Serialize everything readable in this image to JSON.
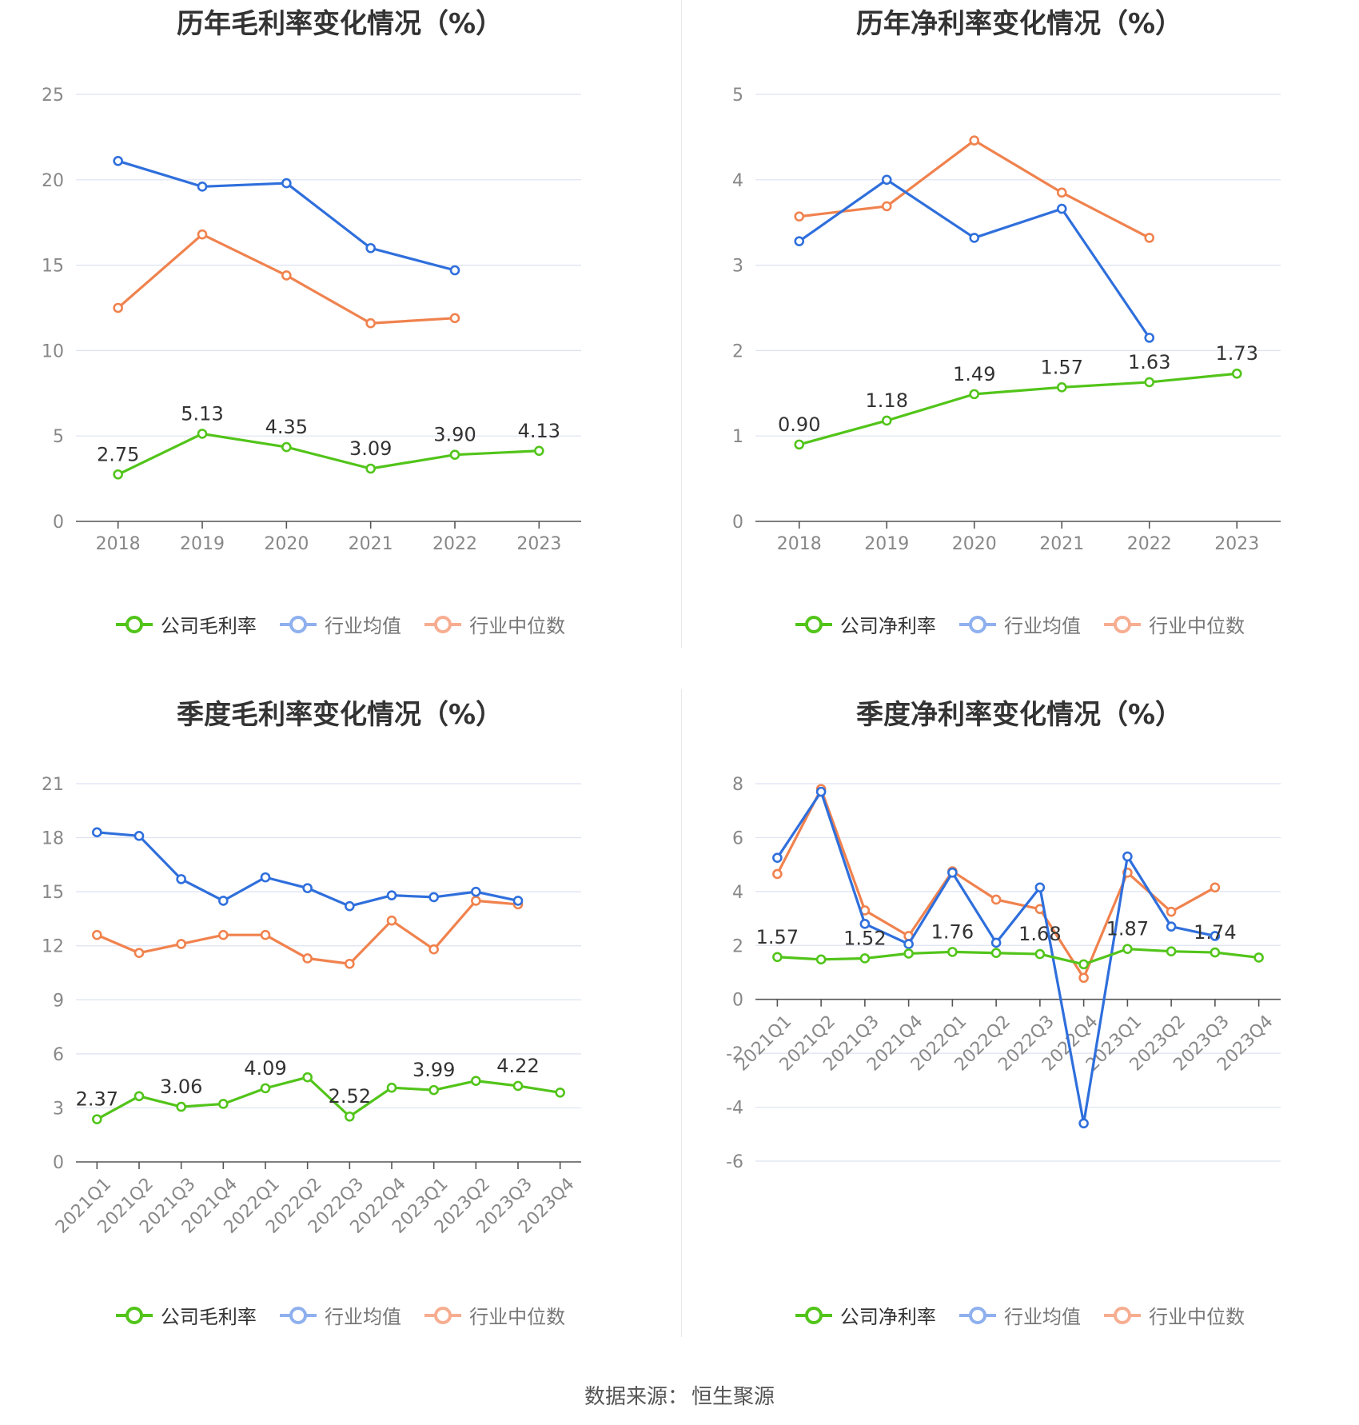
{
  "colors": {
    "company": "#52c41a",
    "industry_avg": "#2f6fdc",
    "industry_median": "#f0824e",
    "legend_avg": "#8eb0ee",
    "legend_median": "#f7ad90",
    "grid": "#dde2f0",
    "axis": "#555555",
    "tick": "#888888",
    "label": "#333333"
  },
  "footer": {
    "label": "数据来源：",
    "source": "恒生聚源"
  },
  "charts": [
    {
      "id": "annual-gross",
      "title": "历年毛利率变化情况（%）",
      "legend": [
        "公司毛利率",
        "行业均值",
        "行业中位数"
      ],
      "ylim": [
        0,
        25
      ],
      "yticks": [
        "0",
        "5",
        "10",
        "15",
        "20",
        "25"
      ],
      "categories": [
        "2018",
        "2019",
        "2020",
        "2021",
        "2022",
        "2023"
      ],
      "company": [
        2.75,
        5.13,
        4.35,
        3.09,
        3.9,
        4.13
      ],
      "avg": [
        21.1,
        19.6,
        19.8,
        16.0,
        14.7,
        null
      ],
      "median": [
        12.5,
        16.8,
        14.4,
        11.6,
        11.9,
        null
      ],
      "labels": [
        "2.75",
        "5.13",
        "4.35",
        "3.09",
        "3.90",
        "4.13"
      ]
    },
    {
      "id": "annual-net",
      "title": "历年净利率变化情况（%）",
      "legend": [
        "公司净利率",
        "行业均值",
        "行业中位数"
      ],
      "ylim": [
        0,
        5
      ],
      "yticks": [
        "0",
        "1",
        "2",
        "3",
        "4",
        "5"
      ],
      "categories": [
        "2018",
        "2019",
        "2020",
        "2021",
        "2022",
        "2023"
      ],
      "company": [
        0.9,
        1.18,
        1.49,
        1.57,
        1.63,
        1.73
      ],
      "avg": [
        3.28,
        4.0,
        3.32,
        3.66,
        2.15,
        null
      ],
      "median": [
        3.57,
        3.69,
        4.46,
        3.85,
        3.32,
        null
      ],
      "labels": [
        "0.90",
        "1.18",
        "1.49",
        "1.57",
        "1.63",
        "1.73"
      ]
    },
    {
      "id": "quarterly-gross",
      "title": "季度毛利率变化情况（%）",
      "legend": [
        "公司毛利率",
        "行业均值",
        "行业中位数"
      ],
      "ylim": [
        0,
        21
      ],
      "yticks": [
        "0",
        "3",
        "6",
        "9",
        "12",
        "15",
        "18",
        "21"
      ],
      "categories": [
        "2021Q1",
        "2021Q2",
        "2021Q3",
        "2021Q4",
        "2022Q1",
        "2022Q2",
        "2022Q3",
        "2022Q4",
        "2023Q1",
        "2023Q2",
        "2023Q3",
        "2023Q4"
      ],
      "company": [
        2.37,
        3.65,
        3.06,
        3.22,
        4.09,
        4.7,
        2.52,
        4.12,
        3.99,
        4.5,
        4.22,
        3.85
      ],
      "avg": [
        18.3,
        18.1,
        15.7,
        14.5,
        15.8,
        15.2,
        14.2,
        14.8,
        14.7,
        15.0,
        14.5,
        null
      ],
      "median": [
        12.6,
        11.6,
        12.1,
        12.6,
        12.6,
        11.3,
        11.0,
        13.4,
        11.8,
        14.5,
        14.3,
        null
      ],
      "labels": [
        "2.37",
        "",
        "3.06",
        "",
        "4.09",
        "",
        "2.52",
        "",
        "3.99",
        "",
        "4.22",
        ""
      ]
    },
    {
      "id": "quarterly-net",
      "title": "季度净利率变化情况（%）",
      "legend": [
        "公司净利率",
        "行业均值",
        "行业中位数"
      ],
      "ylim": [
        -6,
        8
      ],
      "yticks": [
        "-6",
        "-4",
        "-2",
        "0",
        "2",
        "4",
        "6",
        "8"
      ],
      "categories": [
        "2021Q1",
        "2021Q2",
        "2021Q3",
        "2021Q4",
        "2022Q1",
        "2022Q2",
        "2022Q3",
        "2022Q4",
        "2023Q1",
        "2023Q2",
        "2023Q3",
        "2023Q4"
      ],
      "company": [
        1.57,
        1.48,
        1.52,
        1.7,
        1.76,
        1.72,
        1.68,
        1.3,
        1.87,
        1.78,
        1.74,
        1.55
      ],
      "avg": [
        5.25,
        7.7,
        2.8,
        2.05,
        4.7,
        2.1,
        4.15,
        -4.6,
        5.3,
        2.7,
        2.35,
        null
      ],
      "median": [
        4.65,
        7.8,
        3.3,
        2.35,
        4.75,
        3.7,
        3.35,
        0.8,
        4.7,
        3.25,
        4.15,
        null
      ],
      "labels": [
        "1.57",
        "",
        "1.52",
        "",
        "1.76",
        "",
        "1.68",
        "",
        "1.87",
        "",
        "1.74",
        ""
      ]
    }
  ]
}
